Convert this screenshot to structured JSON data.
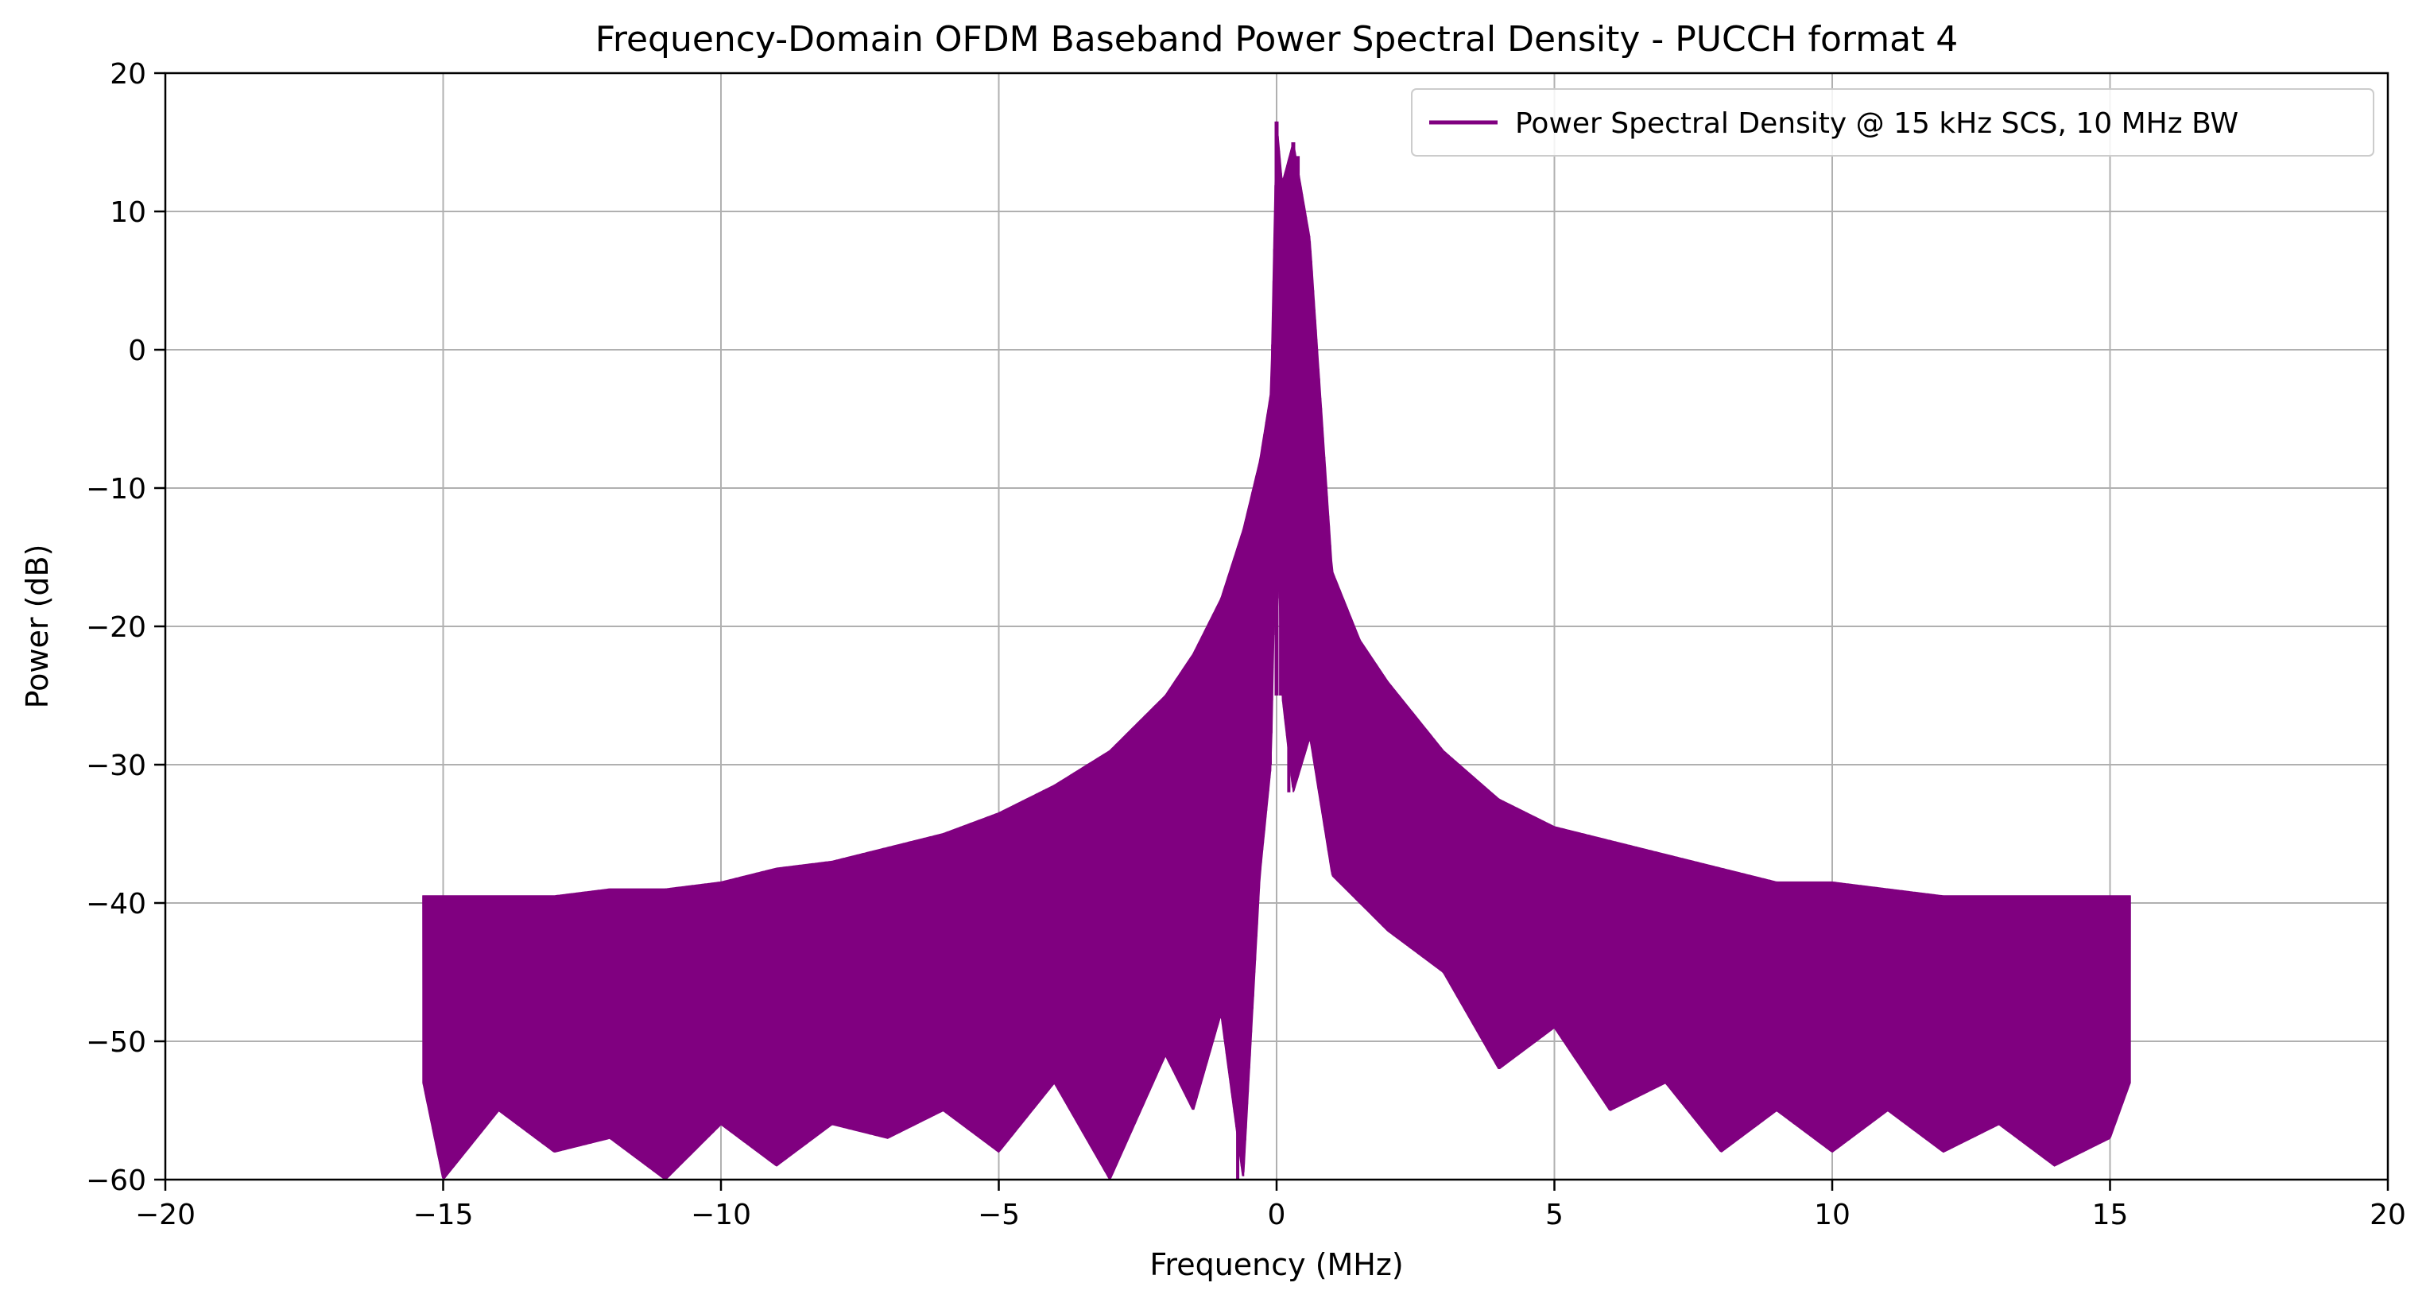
{
  "chart_data": {
    "type": "line",
    "title": "Frequency-Domain OFDM Baseband Power Spectral Density - PUCCH format 4",
    "xlabel": "Frequency (MHz)",
    "ylabel": "Power (dB)",
    "xlim": [
      -20,
      20
    ],
    "ylim": [
      -60,
      20
    ],
    "xticks": [
      -20,
      -15,
      -10,
      -5,
      0,
      5,
      10,
      15,
      20
    ],
    "xtick_labels": [
      "−20",
      "−15",
      "−10",
      "−5",
      "0",
      "5",
      "10",
      "15",
      "20"
    ],
    "yticks": [
      -60,
      -50,
      -40,
      -30,
      -20,
      -10,
      0,
      10,
      20
    ],
    "ytick_labels": [
      "−60",
      "−50",
      "−40",
      "−30",
      "−20",
      "−10",
      "0",
      "10",
      "20"
    ],
    "grid": true,
    "legend_position": "top-right",
    "color": "#800080",
    "series": [
      {
        "name": "Power Spectral Density @ 15 kHz SCS, 10 MHz BW",
        "freq_range_mhz": [
          -15.36,
          15.36
        ],
        "upper_envelope": {
          "x": [
            -15.36,
            -15.0,
            -14.0,
            -13.0,
            -12.0,
            -11.0,
            -10.0,
            -9.0,
            -8.0,
            -7.0,
            -6.0,
            -5.0,
            -4.0,
            -3.0,
            -2.0,
            -1.5,
            -1.0,
            -0.6,
            -0.3,
            -0.1,
            0.0,
            0.1,
            0.3,
            0.6,
            1.0,
            1.5,
            2.0,
            3.0,
            4.0,
            5.0,
            6.0,
            7.0,
            8.0,
            9.0,
            10.0,
            11.0,
            12.0,
            13.0,
            14.0,
            15.0,
            15.36
          ],
          "y": [
            -39.5,
            -39.5,
            -39.5,
            -39.5,
            -39.0,
            -39.0,
            -38.5,
            -37.5,
            -37.0,
            -36.0,
            -35.0,
            -33.5,
            -31.5,
            -29.0,
            -25.0,
            -22.0,
            -18.0,
            -13.0,
            -8.0,
            -3.0,
            16.5,
            12.0,
            15.0,
            8.0,
            -16.0,
            -21.0,
            -24.0,
            -29.0,
            -32.5,
            -34.5,
            -35.5,
            -36.5,
            -37.5,
            -38.5,
            -38.5,
            -39.0,
            -39.5,
            -39.5,
            -39.5,
            -39.5,
            -39.5
          ]
        },
        "lower_envelope": {
          "x": [
            -15.36,
            -15.0,
            -14.0,
            -13.0,
            -12.0,
            -11.0,
            -10.0,
            -9.0,
            -8.0,
            -7.0,
            -6.0,
            -5.0,
            -4.0,
            -3.0,
            -2.0,
            -1.5,
            -1.0,
            -0.6,
            -0.3,
            -0.1,
            0.0,
            0.1,
            0.3,
            0.6,
            1.0,
            1.5,
            2.0,
            3.0,
            4.0,
            5.0,
            6.0,
            7.0,
            8.0,
            9.0,
            10.0,
            11.0,
            12.0,
            13.0,
            14.0,
            15.0,
            15.36
          ],
          "y": [
            -53.0,
            -60.0,
            -55.0,
            -58.0,
            -57.0,
            -60.0,
            -56.0,
            -59.0,
            -56.0,
            -57.0,
            -55.0,
            -58.0,
            -53.0,
            -60.0,
            -51.0,
            -55.0,
            -48.0,
            -60.0,
            -38.0,
            -30.0,
            -10.0,
            -25.0,
            -32.0,
            -28.0,
            -38.0,
            -40.0,
            -42.0,
            -45.0,
            -52.0,
            -49.0,
            -55.0,
            -53.0,
            -58.0,
            -55.0,
            -58.0,
            -55.0,
            -58.0,
            -56.0,
            -59.0,
            -57.0,
            -53.0
          ]
        }
      }
    ]
  }
}
